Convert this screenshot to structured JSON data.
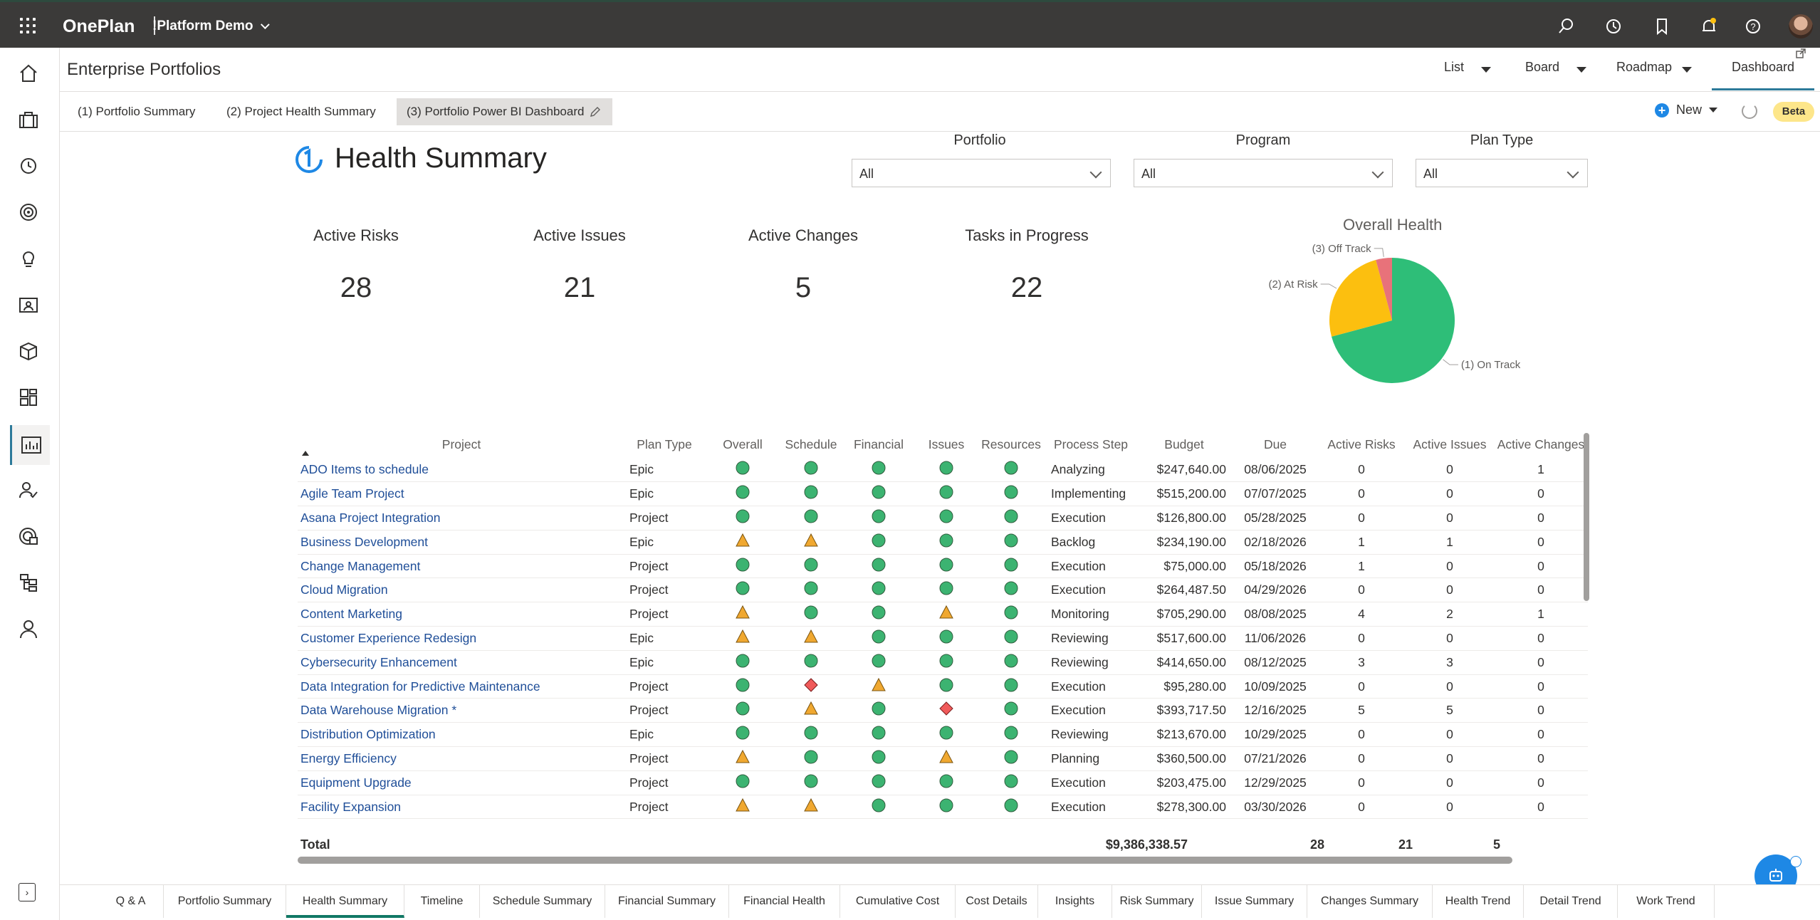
{
  "app": {
    "brand": "OnePlan",
    "workspace": "!Platform Demo"
  },
  "header": {
    "breadcrumb": "Enterprise Portfolios",
    "views": [
      {
        "label": "List"
      },
      {
        "label": "Board"
      },
      {
        "label": "Roadmap"
      },
      {
        "label": "Dashboard",
        "active": true
      }
    ]
  },
  "report_tabs": [
    {
      "label": "(1) Portfolio Summary"
    },
    {
      "label": "(2) Project Health Summary"
    },
    {
      "label": "(3) Portfolio Power BI Dashboard",
      "active": true
    }
  ],
  "actions": {
    "new_label": "New",
    "beta_label": "Beta"
  },
  "report": {
    "title": "Health Summary",
    "slicers": [
      {
        "label": "Portfolio",
        "value": "All"
      },
      {
        "label": "Program",
        "value": "All"
      },
      {
        "label": "Plan Type",
        "value": "All"
      }
    ],
    "kpis": [
      {
        "label": "Active Risks",
        "value": "28"
      },
      {
        "label": "Active Issues",
        "value": "21"
      },
      {
        "label": "Active Changes",
        "value": "5"
      },
      {
        "label": "Tasks in Progress",
        "value": "22"
      }
    ],
    "pie_title": "Overall Health"
  },
  "chart_data": {
    "type": "pie",
    "title": "Overall Health",
    "slices": [
      {
        "label": "(1) On Track",
        "value": 17,
        "color": "#2ebe78"
      },
      {
        "label": "(2) At Risk",
        "value": 6,
        "color": "#fcbf0f"
      },
      {
        "label": "(3) Off Track",
        "value": 1,
        "color": "#e8727a"
      }
    ]
  },
  "table": {
    "columns": [
      "Project",
      "Plan Type",
      "Overall",
      "Schedule",
      "Financial",
      "Issues",
      "Resources",
      "Process Step",
      "Budget",
      "Due",
      "Active Risks",
      "Active Issues",
      "Active Changes"
    ],
    "rows": [
      {
        "project": "ADO Items to schedule",
        "plan_type": "Epic",
        "overall": "green",
        "schedule": "green",
        "financial": "green",
        "issues": "green",
        "resources": "green",
        "step": "Analyzing",
        "budget": "$247,640.00",
        "due": "08/06/2025",
        "risks": "0",
        "iss": "0",
        "changes": "1"
      },
      {
        "project": "Agile Team Project",
        "plan_type": "Epic",
        "overall": "green",
        "schedule": "green",
        "financial": "green",
        "issues": "green",
        "resources": "green",
        "step": "Implementing",
        "budget": "$515,200.00",
        "due": "07/07/2025",
        "risks": "0",
        "iss": "0",
        "changes": "0"
      },
      {
        "project": "Asana Project Integration",
        "plan_type": "Project",
        "overall": "green",
        "schedule": "green",
        "financial": "green",
        "issues": "green",
        "resources": "green",
        "step": "Execution",
        "budget": "$126,800.00",
        "due": "05/28/2025",
        "risks": "0",
        "iss": "0",
        "changes": "0"
      },
      {
        "project": "Business Development",
        "plan_type": "Epic",
        "overall": "amber",
        "schedule": "amber",
        "financial": "green",
        "issues": "green",
        "resources": "green",
        "step": "Backlog",
        "budget": "$234,190.00",
        "due": "02/18/2026",
        "risks": "1",
        "iss": "1",
        "changes": "0"
      },
      {
        "project": "Change Management",
        "plan_type": "Project",
        "overall": "green",
        "schedule": "green",
        "financial": "green",
        "issues": "green",
        "resources": "green",
        "step": "Execution",
        "budget": "$75,000.00",
        "due": "05/18/2026",
        "risks": "1",
        "iss": "0",
        "changes": "0"
      },
      {
        "project": "Cloud Migration",
        "plan_type": "Project",
        "overall": "green",
        "schedule": "green",
        "financial": "green",
        "issues": "green",
        "resources": "green",
        "step": "Execution",
        "budget": "$264,487.50",
        "due": "04/29/2026",
        "risks": "0",
        "iss": "0",
        "changes": "0"
      },
      {
        "project": "Content Marketing",
        "plan_type": "Project",
        "overall": "amber",
        "schedule": "green",
        "financial": "green",
        "issues": "amber",
        "resources": "green",
        "step": "Monitoring",
        "budget": "$705,290.00",
        "due": "08/08/2025",
        "risks": "4",
        "iss": "2",
        "changes": "1"
      },
      {
        "project": "Customer Experience Redesign",
        "plan_type": "Epic",
        "overall": "amber",
        "schedule": "amber",
        "financial": "green",
        "issues": "green",
        "resources": "green",
        "step": "Reviewing",
        "budget": "$517,600.00",
        "due": "11/06/2026",
        "risks": "0",
        "iss": "0",
        "changes": "0"
      },
      {
        "project": "Cybersecurity Enhancement",
        "plan_type": "Epic",
        "overall": "green",
        "schedule": "green",
        "financial": "green",
        "issues": "green",
        "resources": "green",
        "step": "Reviewing",
        "budget": "$414,650.00",
        "due": "08/12/2025",
        "risks": "3",
        "iss": "3",
        "changes": "0"
      },
      {
        "project": "Data Integration for Predictive Maintenance",
        "plan_type": "Project",
        "overall": "green",
        "schedule": "red",
        "financial": "amber",
        "issues": "green",
        "resources": "green",
        "step": "Execution",
        "budget": "$95,280.00",
        "due": "10/09/2025",
        "risks": "0",
        "iss": "0",
        "changes": "0"
      },
      {
        "project": "Data Warehouse Migration *",
        "plan_type": "Project",
        "overall": "green",
        "schedule": "amber",
        "financial": "green",
        "issues": "red",
        "resources": "green",
        "step": "Execution",
        "budget": "$393,717.50",
        "due": "12/16/2025",
        "risks": "5",
        "iss": "5",
        "changes": "0"
      },
      {
        "project": "Distribution Optimization",
        "plan_type": "Epic",
        "overall": "green",
        "schedule": "green",
        "financial": "green",
        "issues": "green",
        "resources": "green",
        "step": "Reviewing",
        "budget": "$213,670.00",
        "due": "10/29/2025",
        "risks": "0",
        "iss": "0",
        "changes": "0"
      },
      {
        "project": "Energy Efficiency",
        "plan_type": "Project",
        "overall": "amber",
        "schedule": "green",
        "financial": "green",
        "issues": "amber",
        "resources": "green",
        "step": "Planning",
        "budget": "$360,500.00",
        "due": "07/21/2026",
        "risks": "0",
        "iss": "0",
        "changes": "0"
      },
      {
        "project": "Equipment Upgrade",
        "plan_type": "Project",
        "overall": "green",
        "schedule": "green",
        "financial": "green",
        "issues": "green",
        "resources": "green",
        "step": "Execution",
        "budget": "$203,475.00",
        "due": "12/29/2025",
        "risks": "0",
        "iss": "0",
        "changes": "0"
      },
      {
        "project": "Facility Expansion",
        "plan_type": "Project",
        "overall": "amber",
        "schedule": "amber",
        "financial": "green",
        "issues": "green",
        "resources": "green",
        "step": "Execution",
        "budget": "$278,300.00",
        "due": "03/30/2026",
        "risks": "0",
        "iss": "0",
        "changes": "0"
      }
    ],
    "total": {
      "label": "Total",
      "budget": "$9,386,338.57",
      "risks": "28",
      "iss": "21",
      "changes": "5"
    }
  },
  "bottom_tabs": [
    "Q & A",
    "Portfolio Summary",
    "Health Summary",
    "Timeline",
    "Schedule Summary",
    "Financial Summary",
    "Financial Health",
    "Cumulative Cost",
    "Cost Details",
    "Insights",
    "Risk Summary",
    "Issue Summary",
    "Changes Summary",
    "Health Trend",
    "Detail Trend",
    "Work Trend"
  ],
  "bottom_tab_active": "Health Summary",
  "status_colors": {
    "green": "#3cb371",
    "amber": "#f0a830",
    "red": "#f05a5a"
  }
}
